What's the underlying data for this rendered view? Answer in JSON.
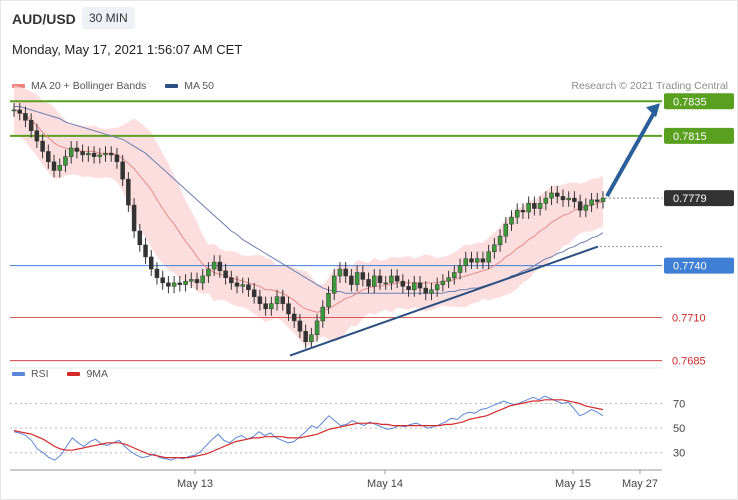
{
  "header": {
    "symbol": "AUD/USD",
    "interval": "30 MIN",
    "datetime": "Monday, May 17, 2021 1:56:07 AM CET"
  },
  "legend": {
    "ma20_label": "MA 20 + Bollinger Bands",
    "ma50_label": "MA 50",
    "ma20_color": "#f08080",
    "ma50_color": "#2b4f80",
    "copyright": "Research © 2021 Trading Central"
  },
  "chart_data": [
    {
      "type": "candlestick",
      "title": "",
      "ylim": [
        0.7675,
        0.7845
      ],
      "x_ticks": [
        "May 13",
        "May 14",
        "May 15",
        "May 27"
      ],
      "levels": [
        {
          "value": 0.7835,
          "label": "0.7835",
          "kind": "resistance",
          "color": "#5aa020"
        },
        {
          "value": 0.7815,
          "label": "0.7815",
          "kind": "resistance",
          "color": "#5aa020"
        },
        {
          "value": 0.7779,
          "label": "0.7779",
          "kind": "last-price",
          "color": "#333333"
        },
        {
          "value": 0.774,
          "label": "0.7740",
          "kind": "pivot",
          "color": "#3f7fd6"
        },
        {
          "value": 0.771,
          "label": "0.7710",
          "kind": "support",
          "color": "#cc2a2a"
        },
        {
          "value": 0.7685,
          "label": "0.7685",
          "kind": "support",
          "color": "#cc2a2a"
        }
      ],
      "close_series": [
        0.783,
        0.7828,
        0.7824,
        0.7818,
        0.7812,
        0.7806,
        0.78,
        0.7795,
        0.7798,
        0.7803,
        0.7808,
        0.7806,
        0.7804,
        0.7805,
        0.7803,
        0.7804,
        0.7805,
        0.7804,
        0.78,
        0.779,
        0.7775,
        0.776,
        0.7752,
        0.7745,
        0.7738,
        0.7733,
        0.773,
        0.7728,
        0.773,
        0.7729,
        0.7731,
        0.7732,
        0.773,
        0.7734,
        0.7738,
        0.7742,
        0.7737,
        0.7733,
        0.773,
        0.7728,
        0.7729,
        0.7726,
        0.7722,
        0.7718,
        0.7715,
        0.7718,
        0.7722,
        0.7718,
        0.7712,
        0.7708,
        0.7702,
        0.7696,
        0.77,
        0.7708,
        0.7716,
        0.7724,
        0.7734,
        0.7738,
        0.7734,
        0.7729,
        0.7736,
        0.7732,
        0.7728,
        0.7734,
        0.773,
        0.773,
        0.7734,
        0.7731,
        0.7728,
        0.7726,
        0.773,
        0.7727,
        0.7724,
        0.7726,
        0.7729,
        0.7731,
        0.7733,
        0.7736,
        0.774,
        0.7744,
        0.7742,
        0.7744,
        0.7742,
        0.7748,
        0.7752,
        0.7757,
        0.7764,
        0.7768,
        0.7772,
        0.7771,
        0.7776,
        0.7773,
        0.7776,
        0.7779,
        0.7782,
        0.778,
        0.7778,
        0.7779,
        0.7777,
        0.7772,
        0.7775,
        0.7778,
        0.7777,
        0.7779
      ],
      "ma20_series": [
        0.783,
        0.7829,
        0.7827,
        0.7824,
        0.7821,
        0.7817,
        0.7814,
        0.7811,
        0.7809,
        0.7808,
        0.7807,
        0.7807,
        0.7806,
        0.7806,
        0.7806,
        0.7805,
        0.7805,
        0.7805,
        0.7804,
        0.7802,
        0.7799,
        0.7796,
        0.7792,
        0.7788,
        0.7784,
        0.7778,
        0.7773,
        0.7768,
        0.7764,
        0.7759,
        0.7754,
        0.775,
        0.7745,
        0.7741,
        0.7738,
        0.7736,
        0.7735,
        0.7734,
        0.7733,
        0.7732,
        0.7731,
        0.773,
        0.7729,
        0.7728,
        0.7726,
        0.7726,
        0.7725,
        0.7724,
        0.7722,
        0.772,
        0.7717,
        0.7715,
        0.7714,
        0.7713,
        0.7714,
        0.7715,
        0.7717,
        0.7719,
        0.7721,
        0.7722,
        0.7724,
        0.7726,
        0.7727,
        0.7728,
        0.7728,
        0.7729,
        0.7729,
        0.773,
        0.773,
        0.773,
        0.773,
        0.773,
        0.773,
        0.773,
        0.773,
        0.7731,
        0.7731,
        0.7732,
        0.7733,
        0.7734,
        0.7735,
        0.7736,
        0.7737,
        0.7738,
        0.774,
        0.7742,
        0.7745,
        0.7747,
        0.775,
        0.7752,
        0.7755,
        0.7757,
        0.776,
        0.7762,
        0.7765,
        0.7767,
        0.7769,
        0.777,
        0.7772,
        0.7773,
        0.7774,
        0.7775,
        0.7776,
        0.7777
      ],
      "ma50_series": [
        0.7832,
        0.7832,
        0.7831,
        0.783,
        0.7829,
        0.7828,
        0.7827,
        0.7826,
        0.7825,
        0.7823,
        0.7822,
        0.7821,
        0.782,
        0.7819,
        0.7818,
        0.7817,
        0.7816,
        0.7815,
        0.7814,
        0.7813,
        0.7811,
        0.7809,
        0.7807,
        0.7805,
        0.7802,
        0.7799,
        0.7796,
        0.7793,
        0.779,
        0.7787,
        0.7784,
        0.7781,
        0.7778,
        0.7775,
        0.7772,
        0.7769,
        0.7766,
        0.7763,
        0.776,
        0.7758,
        0.7755,
        0.7753,
        0.7751,
        0.7749,
        0.7747,
        0.7745,
        0.7743,
        0.7741,
        0.7739,
        0.7737,
        0.7735,
        0.7733,
        0.7731,
        0.7729,
        0.7727,
        0.7726,
        0.7725,
        0.7725,
        0.7724,
        0.7724,
        0.7724,
        0.7724,
        0.7724,
        0.7724,
        0.7724,
        0.7724,
        0.7724,
        0.7724,
        0.7724,
        0.7724,
        0.7724,
        0.7724,
        0.7724,
        0.7724,
        0.7724,
        0.7724,
        0.7725,
        0.7725,
        0.7726,
        0.7726,
        0.7727,
        0.7727,
        0.7728,
        0.7729,
        0.773,
        0.7731,
        0.7732,
        0.7734,
        0.7735,
        0.7737,
        0.7738,
        0.774,
        0.7742,
        0.7744,
        0.7745,
        0.7747,
        0.7748,
        0.775,
        0.7751,
        0.7753,
        0.7754,
        0.7756,
        0.7757,
        0.7759
      ],
      "band_width": 0.0014,
      "trendline": {
        "from_value": 0.7688,
        "to_value": 0.7751
      },
      "projection_target": 0.7835
    },
    {
      "type": "line",
      "title": "",
      "legend": [
        "RSI",
        "9MA"
      ],
      "colors": {
        "rsi": "#5b86d8",
        "ma9": "#d42a2a"
      },
      "ylim": [
        20,
        85
      ],
      "y_ticks": [
        30,
        50,
        70
      ],
      "rsi_series": [
        47,
        46,
        44,
        40,
        33,
        30,
        26,
        24,
        28,
        35,
        42,
        38,
        35,
        39,
        41,
        37,
        36,
        38,
        40,
        35,
        31,
        28,
        26,
        27,
        29,
        26,
        25,
        24,
        26,
        25,
        27,
        28,
        31,
        36,
        41,
        45,
        40,
        38,
        42,
        44,
        41,
        43,
        47,
        44,
        46,
        42,
        40,
        38,
        39,
        43,
        47,
        52,
        50,
        55,
        60,
        56,
        52,
        53,
        56,
        54,
        52,
        55,
        53,
        51,
        49,
        50,
        52,
        51,
        53,
        54,
        52,
        50,
        51,
        53,
        55,
        58,
        57,
        61,
        63,
        62,
        65,
        66,
        68,
        70,
        72,
        70,
        69,
        71,
        73,
        75,
        73,
        76,
        74,
        72,
        70,
        71,
        66,
        60,
        62,
        65,
        63,
        60
      ],
      "ma9_series": [
        48,
        47,
        46,
        45,
        43,
        41,
        38,
        35,
        33,
        32,
        32,
        33,
        34,
        35,
        36,
        37,
        38,
        38,
        38,
        37,
        35,
        33,
        31,
        29,
        28,
        27,
        26,
        26,
        26,
        26,
        26,
        27,
        28,
        29,
        31,
        33,
        35,
        37,
        39,
        40,
        41,
        42,
        42,
        43,
        43,
        43,
        43,
        42,
        42,
        42,
        43,
        44,
        45,
        47,
        49,
        50,
        51,
        52,
        53,
        54,
        54,
        54,
        54,
        53,
        53,
        52,
        52,
        52,
        52,
        52,
        52,
        52,
        52,
        52,
        53,
        53,
        54,
        55,
        57,
        58,
        59,
        60,
        62,
        64,
        66,
        68,
        69,
        70,
        71,
        72,
        72,
        73,
        73,
        73,
        73,
        72,
        71,
        70,
        68,
        67,
        66,
        65
      ]
    }
  ]
}
